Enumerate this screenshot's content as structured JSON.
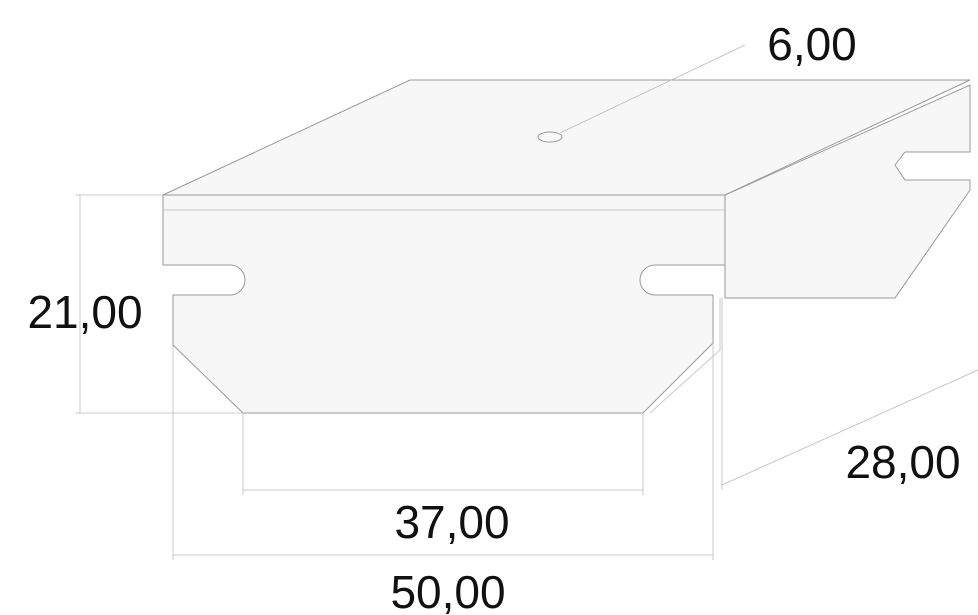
{
  "dimensions": {
    "hole": "6,00",
    "height": "21,00",
    "inner_width": "37,00",
    "depth": "28,00",
    "outer_width": "50,00"
  }
}
